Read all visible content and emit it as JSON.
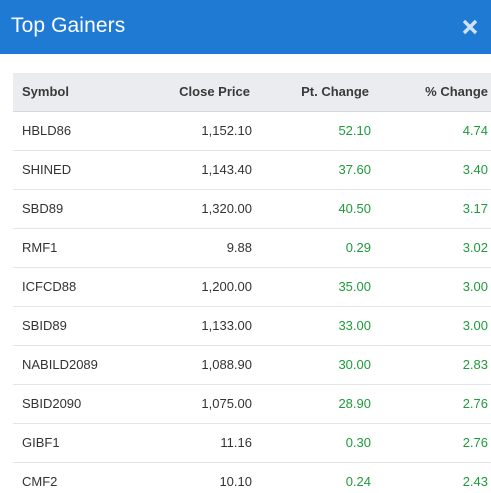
{
  "modal": {
    "title": "Top Gainers",
    "close_icon": "close-icon",
    "header_color": "#1f7ad4"
  },
  "table": {
    "headers": {
      "symbol": "Symbol",
      "close_price": "Close Price",
      "pt_change": "Pt. Change",
      "pct_change": "% Change"
    },
    "positive_color": "#1e9b3a",
    "rows": [
      {
        "symbol": "HBLD86",
        "close_price": "1,152.10",
        "pt_change": "52.10",
        "pct_change": "4.74"
      },
      {
        "symbol": "SHINED",
        "close_price": "1,143.40",
        "pt_change": "37.60",
        "pct_change": "3.40"
      },
      {
        "symbol": "SBD89",
        "close_price": "1,320.00",
        "pt_change": "40.50",
        "pct_change": "3.17"
      },
      {
        "symbol": "RMF1",
        "close_price": "9.88",
        "pt_change": "0.29",
        "pct_change": "3.02"
      },
      {
        "symbol": "ICFCD88",
        "close_price": "1,200.00",
        "pt_change": "35.00",
        "pct_change": "3.00"
      },
      {
        "symbol": "SBID89",
        "close_price": "1,133.00",
        "pt_change": "33.00",
        "pct_change": "3.00"
      },
      {
        "symbol": "NABILD2089",
        "close_price": "1,088.90",
        "pt_change": "30.00",
        "pct_change": "2.83"
      },
      {
        "symbol": "SBID2090",
        "close_price": "1,075.00",
        "pt_change": "28.90",
        "pct_change": "2.76"
      },
      {
        "symbol": "GIBF1",
        "close_price": "11.16",
        "pt_change": "0.30",
        "pct_change": "2.76"
      },
      {
        "symbol": "CMF2",
        "close_price": "10.10",
        "pt_change": "0.24",
        "pct_change": "2.43"
      }
    ]
  }
}
